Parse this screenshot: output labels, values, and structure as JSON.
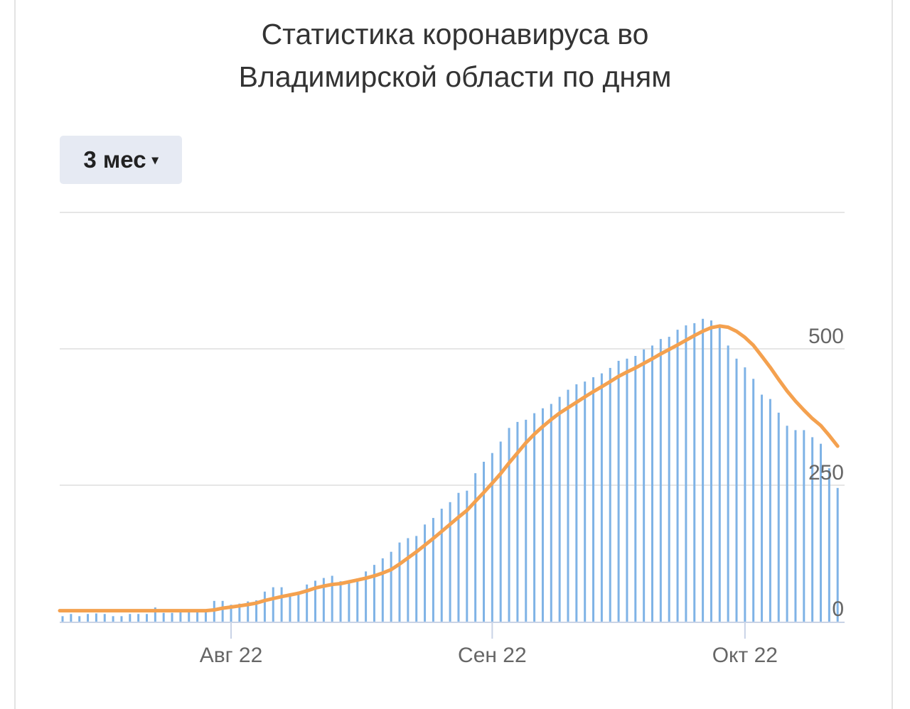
{
  "title_line1": "Статистика коронавируса во",
  "title_line2": "Владимирской области по дням",
  "period_button": {
    "label": "3 мес",
    "caret": "▾"
  },
  "colors": {
    "bars": "#7fb3e6",
    "line": "#f4a14f",
    "grid": "#e6e6e6",
    "axis": "#c9d3e6"
  },
  "chart_data": {
    "type": "bar",
    "title": "Статистика коронавируса во Владимирской области по дням",
    "start_date": "2022-07-12",
    "ylim": [
      0,
      750
    ],
    "yticks": [
      {
        "value": 0,
        "label": "0"
      },
      {
        "value": 250,
        "label": "250"
      },
      {
        "value": 500,
        "label": "500"
      }
    ],
    "xticks": [
      {
        "index": 20,
        "label": "Авг 22"
      },
      {
        "index": 51,
        "label": "Сен 22"
      },
      {
        "index": 81,
        "label": "Окт 22"
      }
    ],
    "grid": true,
    "series": [
      {
        "name": "daily",
        "type": "bar",
        "values": [
          10,
          14,
          10,
          14,
          15,
          14,
          10,
          10,
          14,
          14,
          14,
          26,
          16,
          16,
          18,
          20,
          20,
          22,
          38,
          38,
          31,
          33,
          37,
          39,
          55,
          63,
          63,
          52,
          55,
          68,
          75,
          80,
          84,
          74,
          74,
          79,
          92,
          104,
          116,
          128,
          145,
          153,
          157,
          178,
          190,
          207,
          219,
          236,
          240,
          272,
          293,
          309,
          330,
          355,
          366,
          370,
          382,
          391,
          399,
          412,
          425,
          435,
          440,
          448,
          455,
          465,
          478,
          482,
          487,
          499,
          506,
          518,
          522,
          535,
          543,
          547,
          555,
          552,
          539,
          506,
          482,
          466,
          445,
          416,
          408,
          383,
          359,
          351,
          351,
          338,
          326,
          281,
          245
        ]
      },
      {
        "name": "7-day average",
        "type": "line",
        "window": 7
      }
    ]
  }
}
